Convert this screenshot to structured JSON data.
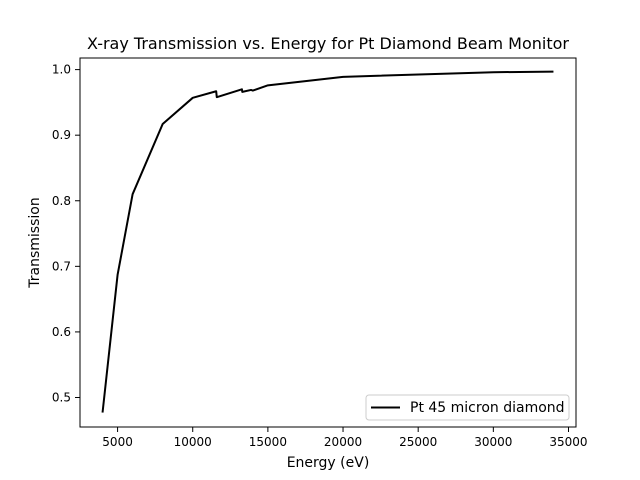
{
  "chart_data": {
    "type": "line",
    "title": "X-ray Transmission vs. Energy for Pt Diamond Beam Monitor",
    "xlabel": "Energy (eV)",
    "ylabel": "Transmission",
    "xlim": [
      2500,
      35500
    ],
    "ylim": [
      0.455,
      1.0177
    ],
    "xticks": [
      5000,
      10000,
      15000,
      20000,
      25000,
      30000,
      35000
    ],
    "xtick_labels": [
      "5000",
      "10000",
      "15000",
      "20000",
      "25000",
      "30000",
      "35000"
    ],
    "yticks": [
      0.5,
      0.6,
      0.7,
      0.8,
      0.9,
      1.0
    ],
    "ytick_labels": [
      "0.5",
      "0.6",
      "0.7",
      "0.8",
      "0.9",
      "1.0"
    ],
    "grid": false,
    "legend_position": "lower-right",
    "series": [
      {
        "name": "Pt 45 micron diamond",
        "color": "#000000",
        "x": [
          4000,
          5000,
          6000,
          8000,
          10000,
          11560,
          11600,
          13270,
          13300,
          13880,
          14000,
          15000,
          20000,
          30000,
          34000
        ],
        "y": [
          0.477,
          0.687,
          0.81,
          0.917,
          0.957,
          0.967,
          0.958,
          0.97,
          0.966,
          0.969,
          0.968,
          0.976,
          0.989,
          0.996,
          0.997
        ]
      }
    ]
  }
}
